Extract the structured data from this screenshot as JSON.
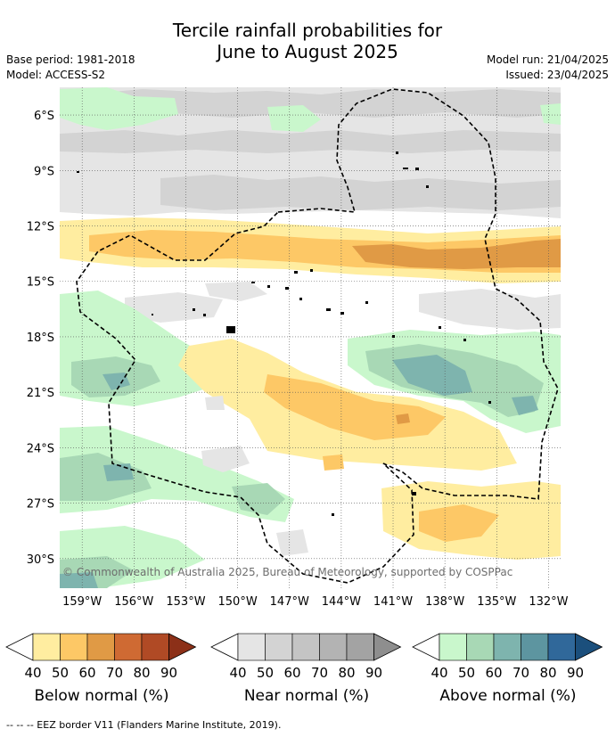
{
  "title": {
    "line1": "Tercile rainfall probabilities for",
    "line2": "June to August 2025"
  },
  "meta": {
    "base_period": "Base period: 1981-2018",
    "model": "Model: ACCESS-S2",
    "model_run": "Model run: 21/04/2025",
    "issued": "Issued: 23/04/2025"
  },
  "map": {
    "copyright": "© Commonwealth of Australia 2025, Bureau of Meteorology, supported by COSPPac",
    "lat_labels": [
      "6°S",
      "9°S",
      "12°S",
      "15°S",
      "18°S",
      "21°S",
      "24°S",
      "27°S",
      "30°S"
    ],
    "lon_labels": [
      "159°W",
      "156°W",
      "153°W",
      "150°W",
      "147°W",
      "144°W",
      "141°W",
      "138°W",
      "135°W",
      "132°W"
    ],
    "extent": {
      "lon_min": -160.3,
      "lon_max": -131.3,
      "lat_max": -4.5,
      "lat_min": -31.6
    }
  },
  "colorbars": [
    {
      "name": "below",
      "title": "Below normal (%)",
      "ticks": [
        "40",
        "50",
        "60",
        "70",
        "80",
        "90"
      ],
      "colors": [
        "#ffffff",
        "#ffeda0",
        "#fdc866",
        "#e09a45",
        "#cf6a33",
        "#b04a25",
        "#8c3018"
      ]
    },
    {
      "name": "near",
      "title": "Near normal (%)",
      "ticks": [
        "40",
        "50",
        "60",
        "70",
        "80",
        "90"
      ],
      "colors": [
        "#ffffff",
        "#e5e5e5",
        "#d3d3d3",
        "#c4c4c4",
        "#b3b3b3",
        "#a3a3a3",
        "#8e8e8e"
      ]
    },
    {
      "name": "above",
      "title": "Above normal (%)",
      "ticks": [
        "40",
        "50",
        "60",
        "70",
        "80",
        "90"
      ],
      "colors": [
        "#ffffff",
        "#c9f7cc",
        "#a8d8b5",
        "#7eb4ae",
        "#5d95a0",
        "#30689a",
        "#1b4f7c"
      ]
    }
  ],
  "footer": "--  --  -- EEZ border V11 (Flanders Marine Institute, 2019)."
}
